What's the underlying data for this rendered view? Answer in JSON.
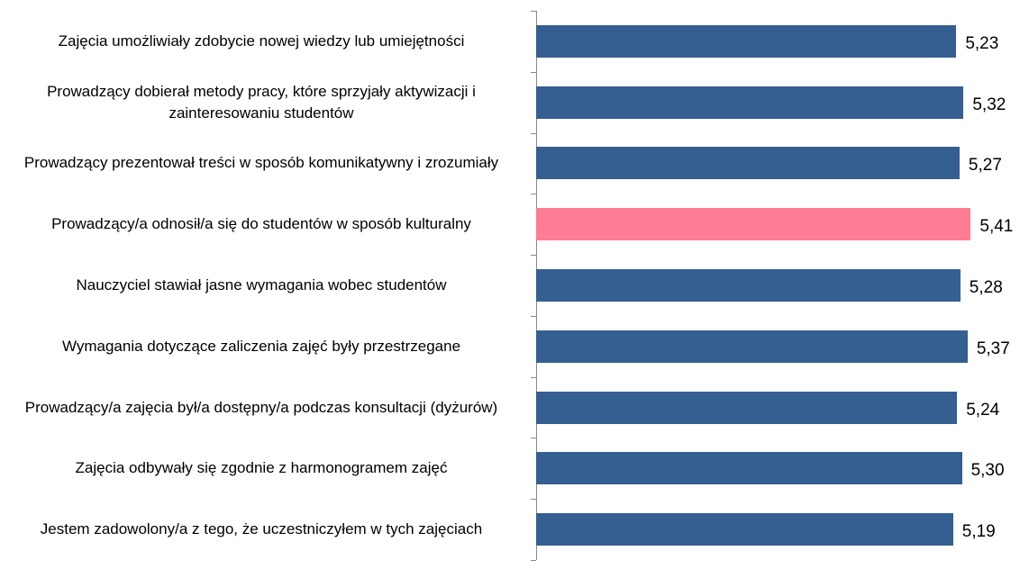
{
  "chart_data": {
    "type": "barh",
    "categories": [
      "Zajęcia umożliwiały zdobycie nowej wiedzy lub umiejętności",
      "Prowadzący dobierał metody pracy, które sprzyjały aktywizacji i zainteresowaniu studentów",
      "Prowadzący prezentował treści w sposób komunikatywny i zrozumiały",
      "Prowadzący/a odnosił/a się do studentów w sposób kulturalny",
      "Nauczyciel stawiał jasne wymagania wobec studentów",
      "Wymagania dotyczące zaliczenia zajęć były przestrzegane",
      "Prowadzący/a zajęcia był/a dostępny/a podczas konsultacji (dyżurów)",
      "Zajęcia odbywały się zgodnie z harmonogramem zajęć",
      "Jestem zadowolony/a z tego, że uczestniczyłem w tych zajęciach"
    ],
    "values": [
      5.23,
      5.32,
      5.27,
      5.41,
      5.28,
      5.37,
      5.24,
      5.3,
      5.19
    ],
    "value_labels": [
      "5,23",
      "5,32",
      "5,27",
      "5,41",
      "5,28",
      "5,37",
      "5,24",
      "5,30",
      "5,19"
    ],
    "colors": [
      "#365f91",
      "#365f91",
      "#365f91",
      "#ff7c95",
      "#365f91",
      "#365f91",
      "#365f91",
      "#365f91",
      "#365f91"
    ],
    "xlim": [
      0,
      6
    ]
  }
}
